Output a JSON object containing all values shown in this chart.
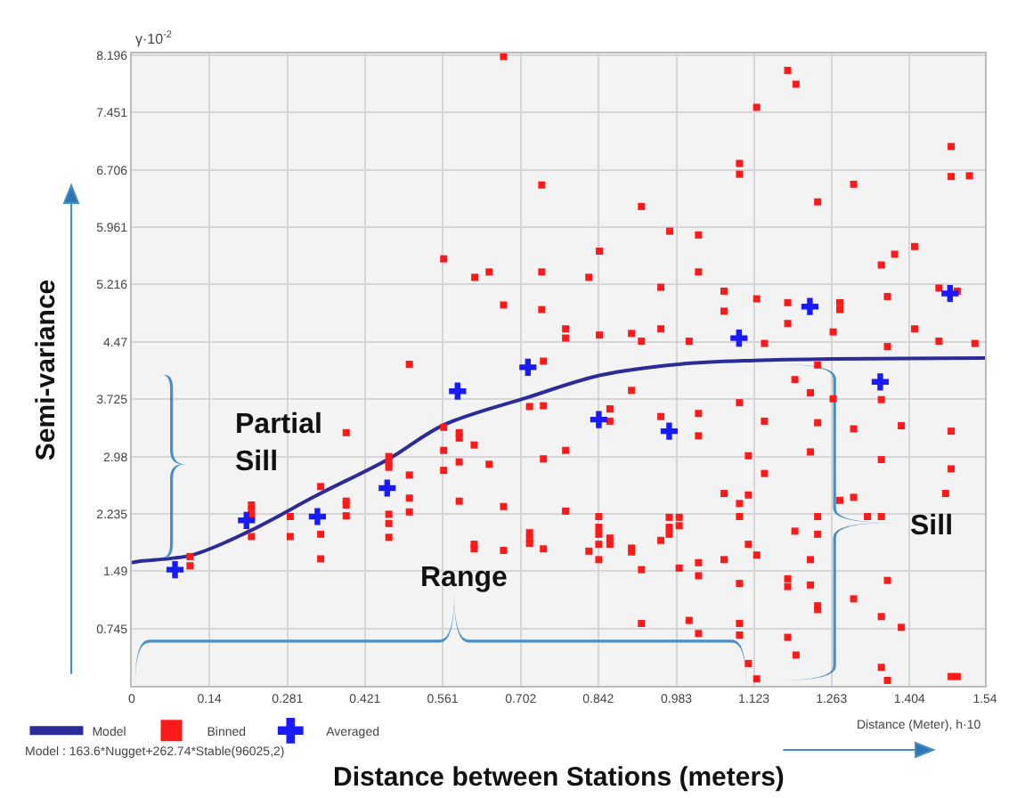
{
  "chart_data": {
    "type": "scatter",
    "xlabel": "Distance between Stations (meters)",
    "ylabel": "Semi-variance",
    "annotations": [
      "γ·10$^{-2}$",
      "Partial\nSill",
      "Range",
      "Sill",
      "Distance (Meter), h·10",
      "Model : 163.6*Nugget+262.74*Stable(96025,2)"
    ],
    "xlim": [
      0,
      1.54
    ],
    "ylim": [
      0,
      8.22
    ],
    "xticks": [
      0,
      0.14,
      0.281,
      0.421,
      0.561,
      0.702,
      0.842,
      0.983,
      1.123,
      1.263,
      1.404,
      1.54
    ],
    "yticks": [
      0.745,
      1.49,
      2.235,
      2.98,
      3.725,
      4.47,
      5.216,
      5.961,
      6.706,
      7.451,
      8.196
    ],
    "grid": true,
    "legend": "bottom left",
    "series": [
      {
        "name": "Model",
        "type": "line",
        "color": "#2b2b9a",
        "marker": "none",
        "line_style": "solid",
        "x": [
          0,
          0.016,
          0.109,
          0.212,
          0.335,
          0.464,
          0.563,
          0.715,
          0.848,
          0.988,
          1.125,
          1.266,
          1.54
        ],
        "values": [
          1.6,
          1.62,
          1.7,
          2.01,
          2.48,
          2.95,
          3.39,
          3.75,
          4.04,
          4.18,
          4.23,
          4.25,
          4.26
        ]
      },
      {
        "name": "Binned",
        "type": "scatter",
        "color": "#ff1a1a",
        "marker": "square",
        "x": [
          0.671,
          0.74,
          0.563,
          0.619,
          0.645,
          0.74,
          0.671,
          0.74,
          1.184,
          1.199,
          1.128,
          1.097,
          1.097,
          0.92,
          1.238,
          1.303,
          1.479,
          1.479,
          1.512,
          0.971,
          1.023,
          0.844,
          0.825,
          1.023,
          0.955,
          1.069,
          1.069,
          1.128,
          1.184,
          1.184,
          1.278,
          1.278,
          1.353,
          1.377,
          1.413,
          1.364,
          1.457,
          1.49,
          0.783,
          0.783,
          0.844,
          0.902,
          0.92,
          0.955,
          1.006,
          1.142,
          1.266,
          1.364,
          1.413,
          1.457,
          1.522,
          0.501,
          0.743,
          0.718,
          0.743,
          0.387,
          0.563,
          0.591,
          0.591,
          0.618,
          0.563,
          0.464,
          0.464,
          0.464,
          0.591,
          0.645,
          0.743,
          0.501,
          0.563,
          0.341,
          0.387,
          0.387,
          0.501,
          0.591,
          0.671,
          0.216,
          0.216,
          0.216,
          0.387,
          0.464,
          0.501,
          0.286,
          0.464,
          0.216,
          0.286,
          0.341,
          0.464,
          0.718,
          0.718,
          0.718,
          0.743,
          0.618,
          0.618,
          0.671,
          0.341,
          0.105,
          0.105,
          1.238,
          1.197,
          1.225,
          1.266,
          1.353,
          0.902,
          0.863,
          0.863,
          0.955,
          1.023,
          1.023,
          1.097,
          1.142,
          1.238,
          1.303,
          1.389,
          1.479,
          0.783,
          1.113,
          1.225,
          1.142,
          1.353,
          1.479,
          1.469,
          1.069,
          1.097,
          1.113,
          1.278,
          1.303,
          0.783,
          0.843,
          0.843,
          0.843,
          0.843,
          0.843,
          0.863,
          0.863,
          0.902,
          0.902,
          0.825,
          0.955,
          0.97,
          0.97,
          0.97,
          0.988,
          0.988,
          1.097,
          1.238,
          1.238,
          1.353,
          1.328,
          1.197,
          1.113,
          1.128,
          1.069,
          1.225,
          1.023,
          0.988,
          0.92,
          1.023,
          1.097,
          1.184,
          1.184,
          1.225,
          1.303,
          1.364,
          1.238,
          1.238,
          1.353,
          1.389,
          0.92,
          1.006,
          1.023,
          1.097,
          1.097,
          1.184,
          1.199,
          1.113,
          1.128,
          1.353,
          1.364,
          1.479,
          1.49
        ],
        "values": [
          8.18,
          6.51,
          5.55,
          5.31,
          5.38,
          5.38,
          4.95,
          4.89,
          8.0,
          7.82,
          7.52,
          6.79,
          6.65,
          6.23,
          6.29,
          6.52,
          7.01,
          6.62,
          6.63,
          5.91,
          5.86,
          5.65,
          5.31,
          5.38,
          5.18,
          5.13,
          4.87,
          5.03,
          4.98,
          4.71,
          4.98,
          4.89,
          5.47,
          5.61,
          5.71,
          5.06,
          5.17,
          5.13,
          4.64,
          4.52,
          4.56,
          4.58,
          4.48,
          4.64,
          4.48,
          4.45,
          4.6,
          4.41,
          4.64,
          4.48,
          4.45,
          4.18,
          4.22,
          3.63,
          3.64,
          3.29,
          3.36,
          3.29,
          3.22,
          3.13,
          3.06,
          2.98,
          2.9,
          2.84,
          2.91,
          2.88,
          2.95,
          2.74,
          2.8,
          2.59,
          2.4,
          2.35,
          2.44,
          2.4,
          2.33,
          2.35,
          2.28,
          2.2,
          2.21,
          2.23,
          2.26,
          2.2,
          2.11,
          1.94,
          1.94,
          1.97,
          1.93,
          1.99,
          1.91,
          1.85,
          1.78,
          1.84,
          1.78,
          1.76,
          1.65,
          1.68,
          1.56,
          4.17,
          3.98,
          3.81,
          3.73,
          3.72,
          3.84,
          3.6,
          3.44,
          3.5,
          3.54,
          3.25,
          3.68,
          3.44,
          3.42,
          3.34,
          3.38,
          3.31,
          3.06,
          2.99,
          3.04,
          2.76,
          2.94,
          2.82,
          2.5,
          2.5,
          2.37,
          2.48,
          2.41,
          2.45,
          2.27,
          2.2,
          2.06,
          1.97,
          1.84,
          1.64,
          1.92,
          1.84,
          1.79,
          1.74,
          1.75,
          1.89,
          2.19,
          2.06,
          1.97,
          2.19,
          2.08,
          2.2,
          2.2,
          1.97,
          2.2,
          2.2,
          2.01,
          1.84,
          1.7,
          1.64,
          1.64,
          1.6,
          1.53,
          1.51,
          1.43,
          1.33,
          1.39,
          1.29,
          1.31,
          1.13,
          1.37,
          1.04,
          0.99,
          0.9,
          0.76,
          0.81,
          0.85,
          0.68,
          0.81,
          0.66,
          0.63,
          0.4,
          0.29,
          0.09,
          0.24,
          0.07,
          0.12,
          0.12
        ]
      },
      {
        "name": "Averaged",
        "type": "scatter",
        "color": "#1a1aff",
        "marker": "cross",
        "x": [
          0.078,
          0.207,
          0.335,
          0.461,
          0.588,
          0.715,
          0.843,
          0.97,
          1.096,
          1.224,
          1.351,
          1.477
        ],
        "values": [
          1.51,
          2.15,
          2.2,
          2.57,
          3.83,
          4.14,
          3.46,
          3.31,
          4.52,
          4.93,
          3.95,
          5.1
        ]
      }
    ]
  }
}
